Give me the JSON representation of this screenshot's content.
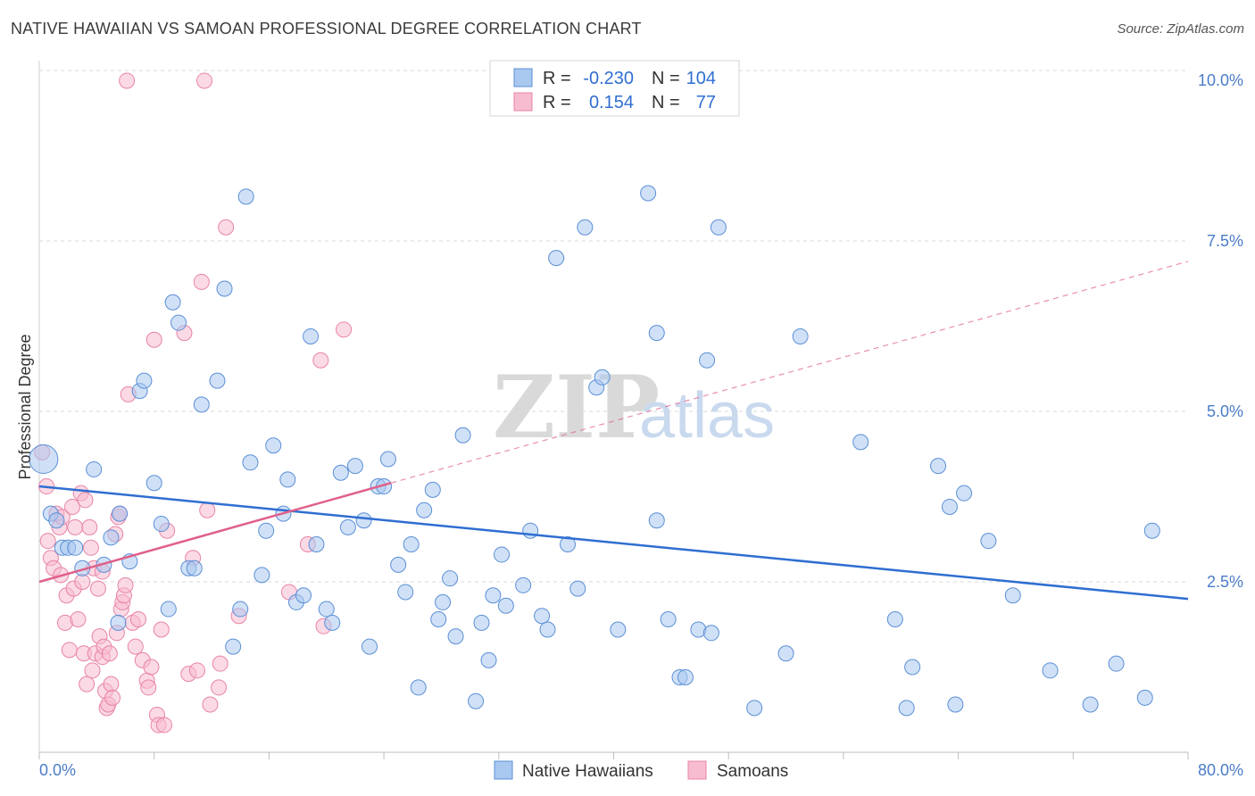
{
  "title": "NATIVE HAWAIIAN VS SAMOAN PROFESSIONAL DEGREE CORRELATION CHART",
  "source": "Source: ZipAtlas.com",
  "watermark": {
    "a": "ZIP",
    "b": "atlas"
  },
  "colors": {
    "blue_fill": "#a9c8f0",
    "blue_stroke": "#5b8fd6",
    "blue_line": "#2f6ed1",
    "pink_fill": "#f7bcd0",
    "pink_stroke": "#e884a6",
    "pink_line": "#e0608a",
    "grid": "#d8d8d8",
    "tick_text": "#4a7cc7"
  },
  "legend": {
    "r_label": "R =",
    "n_label": "N =",
    "rows": [
      {
        "r": "-0.230",
        "n": "104"
      },
      {
        "r": "0.154",
        "n": "77"
      }
    ]
  },
  "bottom_legend": [
    "Native Hawaiians",
    "Samoans"
  ],
  "chart_data": {
    "type": "scatter",
    "xlabel": "",
    "ylabel": "Professional Degree",
    "xlim": [
      0,
      80
    ],
    "ylim": [
      0,
      10
    ],
    "x_tick_labels": [
      "0.0%",
      "80.0%"
    ],
    "y_ticks": [
      2.5,
      5.0,
      7.5,
      10.0
    ],
    "y_tick_labels": [
      "2.5%",
      "5.0%",
      "7.5%",
      "10.0%"
    ],
    "grid": true,
    "series": [
      {
        "name": "Native Hawaiians",
        "trend": {
          "x": [
            0,
            80
          ],
          "y": [
            3.9,
            2.25
          ]
        },
        "points": [
          [
            0.3,
            4.3
          ],
          [
            0.8,
            3.5
          ],
          [
            1.2,
            3.4
          ],
          [
            1.6,
            3.0
          ],
          [
            2.0,
            3.0
          ],
          [
            2.5,
            3.0
          ],
          [
            3.0,
            2.7
          ],
          [
            3.8,
            4.15
          ],
          [
            4.5,
            2.75
          ],
          [
            5.0,
            3.15
          ],
          [
            5.5,
            1.9
          ],
          [
            5.6,
            3.5
          ],
          [
            6.3,
            2.8
          ],
          [
            7.0,
            5.3
          ],
          [
            7.3,
            5.45
          ],
          [
            8.0,
            3.95
          ],
          [
            8.5,
            3.35
          ],
          [
            9.0,
            2.1
          ],
          [
            9.3,
            6.6
          ],
          [
            9.7,
            6.3
          ],
          [
            10.4,
            2.7
          ],
          [
            10.8,
            2.7
          ],
          [
            11.3,
            5.1
          ],
          [
            12.4,
            5.45
          ],
          [
            12.9,
            6.8
          ],
          [
            13.5,
            1.55
          ],
          [
            14.0,
            2.1
          ],
          [
            14.4,
            8.15
          ],
          [
            14.7,
            4.25
          ],
          [
            15.5,
            2.6
          ],
          [
            15.8,
            3.25
          ],
          [
            16.3,
            4.5
          ],
          [
            17.0,
            3.5
          ],
          [
            17.3,
            4.0
          ],
          [
            17.9,
            2.2
          ],
          [
            18.4,
            2.3
          ],
          [
            18.9,
            6.1
          ],
          [
            19.3,
            3.05
          ],
          [
            20.0,
            2.1
          ],
          [
            20.4,
            1.9
          ],
          [
            21.0,
            4.1
          ],
          [
            21.5,
            3.3
          ],
          [
            22.0,
            4.2
          ],
          [
            22.6,
            3.4
          ],
          [
            23.0,
            1.55
          ],
          [
            23.6,
            3.9
          ],
          [
            24.0,
            3.9
          ],
          [
            24.3,
            4.3
          ],
          [
            25.0,
            2.75
          ],
          [
            25.5,
            2.35
          ],
          [
            25.9,
            3.05
          ],
          [
            26.4,
            0.95
          ],
          [
            26.8,
            3.55
          ],
          [
            27.4,
            3.85
          ],
          [
            27.8,
            1.95
          ],
          [
            28.1,
            2.2
          ],
          [
            28.6,
            2.55
          ],
          [
            29.0,
            1.7
          ],
          [
            29.5,
            4.65
          ],
          [
            30.4,
            0.75
          ],
          [
            30.8,
            1.9
          ],
          [
            31.3,
            1.35
          ],
          [
            31.6,
            2.3
          ],
          [
            32.2,
            2.9
          ],
          [
            32.5,
            2.15
          ],
          [
            33.7,
            2.45
          ],
          [
            34.2,
            3.25
          ],
          [
            35.0,
            2.0
          ],
          [
            35.4,
            1.8
          ],
          [
            36.0,
            7.25
          ],
          [
            36.8,
            3.05
          ],
          [
            37.5,
            2.4
          ],
          [
            38.0,
            7.7
          ],
          [
            38.8,
            5.35
          ],
          [
            39.2,
            5.5
          ],
          [
            40.3,
            1.8
          ],
          [
            42.4,
            8.2
          ],
          [
            43.0,
            6.15
          ],
          [
            43.0,
            3.4
          ],
          [
            43.8,
            1.95
          ],
          [
            44.6,
            1.1
          ],
          [
            45.0,
            1.1
          ],
          [
            45.9,
            1.8
          ],
          [
            46.5,
            5.75
          ],
          [
            46.8,
            1.75
          ],
          [
            47.3,
            7.7
          ],
          [
            49.8,
            0.65
          ],
          [
            52.0,
            1.45
          ],
          [
            53.0,
            6.1
          ],
          [
            57.2,
            4.55
          ],
          [
            59.6,
            1.95
          ],
          [
            60.4,
            0.65
          ],
          [
            60.8,
            1.25
          ],
          [
            62.6,
            4.2
          ],
          [
            63.4,
            3.6
          ],
          [
            63.8,
            0.7
          ],
          [
            64.4,
            3.8
          ],
          [
            66.1,
            3.1
          ],
          [
            67.8,
            2.3
          ],
          [
            70.4,
            1.2
          ],
          [
            73.2,
            0.7
          ],
          [
            75.0,
            1.3
          ],
          [
            77.0,
            0.8
          ],
          [
            77.5,
            3.25
          ]
        ]
      },
      {
        "name": "Samoans",
        "trend": {
          "x": [
            0,
            24.5
          ],
          "y": [
            2.5,
            3.95
          ]
        },
        "trend_extension": {
          "x": [
            24.5,
            80
          ],
          "y": [
            3.95,
            7.2
          ]
        },
        "points": [
          [
            0.2,
            4.4
          ],
          [
            0.5,
            3.9
          ],
          [
            0.6,
            3.1
          ],
          [
            0.8,
            2.85
          ],
          [
            1.0,
            2.7
          ],
          [
            1.2,
            3.5
          ],
          [
            1.4,
            3.3
          ],
          [
            1.5,
            2.6
          ],
          [
            1.6,
            3.45
          ],
          [
            1.8,
            1.9
          ],
          [
            1.9,
            2.3
          ],
          [
            2.1,
            1.5
          ],
          [
            2.3,
            3.6
          ],
          [
            2.4,
            2.4
          ],
          [
            2.5,
            3.3
          ],
          [
            2.7,
            1.95
          ],
          [
            2.9,
            3.8
          ],
          [
            3.0,
            2.5
          ],
          [
            3.1,
            1.45
          ],
          [
            3.2,
            3.7
          ],
          [
            3.3,
            1.0
          ],
          [
            3.5,
            3.3
          ],
          [
            3.6,
            3.0
          ],
          [
            3.8,
            2.7
          ],
          [
            3.9,
            1.45
          ],
          [
            4.1,
            2.4
          ],
          [
            4.2,
            1.7
          ],
          [
            4.4,
            1.4
          ],
          [
            4.5,
            1.55
          ],
          [
            4.6,
            0.9
          ],
          [
            4.7,
            0.65
          ],
          [
            4.8,
            0.7
          ],
          [
            4.9,
            1.45
          ],
          [
            5.0,
            1.0
          ],
          [
            5.1,
            0.8
          ],
          [
            5.3,
            3.2
          ],
          [
            5.4,
            1.75
          ],
          [
            5.5,
            3.45
          ],
          [
            5.6,
            3.5
          ],
          [
            5.7,
            2.1
          ],
          [
            5.8,
            2.2
          ],
          [
            5.9,
            2.3
          ],
          [
            6.1,
            9.85
          ],
          [
            6.2,
            5.25
          ],
          [
            6.5,
            1.9
          ],
          [
            6.7,
            1.55
          ],
          [
            6.9,
            1.95
          ],
          [
            7.2,
            1.35
          ],
          [
            7.5,
            1.05
          ],
          [
            7.6,
            0.95
          ],
          [
            7.8,
            1.25
          ],
          [
            8.0,
            6.05
          ],
          [
            8.2,
            0.55
          ],
          [
            8.3,
            0.4
          ],
          [
            8.5,
            1.8
          ],
          [
            8.7,
            0.4
          ],
          [
            8.9,
            3.25
          ],
          [
            10.1,
            6.15
          ],
          [
            10.4,
            1.15
          ],
          [
            10.7,
            2.85
          ],
          [
            11.0,
            1.2
          ],
          [
            11.3,
            6.9
          ],
          [
            11.5,
            9.85
          ],
          [
            11.7,
            3.55
          ],
          [
            11.9,
            0.7
          ],
          [
            12.5,
            0.95
          ],
          [
            13.0,
            7.7
          ],
          [
            17.4,
            2.35
          ],
          [
            18.7,
            3.05
          ],
          [
            19.6,
            5.75
          ],
          [
            19.8,
            1.85
          ],
          [
            21.2,
            6.2
          ],
          [
            12.6,
            1.3
          ],
          [
            3.7,
            1.2
          ],
          [
            6.0,
            2.45
          ],
          [
            13.9,
            2.0
          ],
          [
            4.4,
            2.65
          ]
        ]
      }
    ]
  }
}
